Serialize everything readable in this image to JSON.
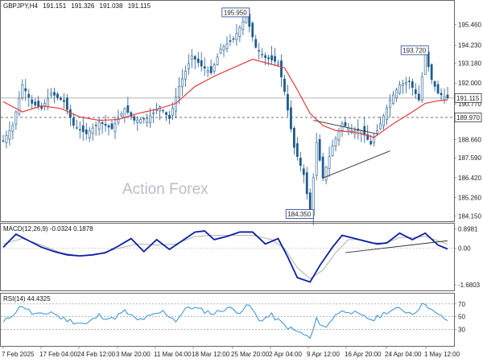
{
  "chart_data": [
    {
      "type": "candlestick",
      "symbol": "GBPJPY,H4",
      "ohlc": {
        "open": "191.151",
        "high": "191.326",
        "low": "191.038",
        "close": "191.115"
      },
      "ylim": [
        183.9,
        196.8
      ],
      "y_ticks": [
        "195.460",
        "194.230",
        "193.180",
        "192.000",
        "190.770",
        "188.660",
        "187.590",
        "186.420",
        "185.260",
        "184.150"
      ],
      "x_tick_labels": [
        "7 Feb 2025",
        "17 Feb 04:00",
        "24 Feb 12:00",
        "3 Mar 20:00",
        "11 Mar 04:00",
        "18 Mar 12:00",
        "25 Mar 20:00",
        "2 Apr 04:00",
        "9 Apr 12:00",
        "16 Apr 20:00",
        "24 Apr 04:00",
        "1 May 12:00"
      ],
      "x_count": 140,
      "price_path": [
        [
          0,
          188.6
        ],
        [
          3,
          189.5
        ],
        [
          6,
          191.9
        ],
        [
          9,
          190.8
        ],
        [
          12,
          190.5
        ],
        [
          15,
          191.4
        ],
        [
          19,
          190.9
        ],
        [
          22,
          189.5
        ],
        [
          26,
          189.0
        ],
        [
          30,
          189.7
        ],
        [
          34,
          189.3
        ],
        [
          38,
          190.5
        ],
        [
          41,
          189.8
        ],
        [
          45,
          189.9
        ],
        [
          49,
          190.6
        ],
        [
          52,
          189.9
        ],
        [
          55,
          191.8
        ],
        [
          59,
          193.6
        ],
        [
          62,
          193.0
        ],
        [
          65,
          192.6
        ],
        [
          68,
          194.0
        ],
        [
          72,
          194.6
        ],
        [
          76,
          195.95
        ],
        [
          79,
          194.1
        ],
        [
          82,
          193.5
        ],
        [
          86,
          193.2
        ],
        [
          88,
          191.5
        ],
        [
          91,
          188.2
        ],
        [
          94,
          186.6
        ],
        [
          96,
          184.35
        ],
        [
          98,
          188.5
        ],
        [
          100,
          186.4
        ],
        [
          103,
          188.3
        ],
        [
          106,
          189.6
        ],
        [
          109,
          189.2
        ],
        [
          112,
          189.2
        ],
        [
          115,
          188.4
        ],
        [
          118,
          189.6
        ],
        [
          121,
          191.0
        ],
        [
          124,
          191.9
        ],
        [
          127,
          192.1
        ],
        [
          130,
          191.0
        ],
        [
          132,
          193.72
        ],
        [
          134,
          192.2
        ],
        [
          136,
          191.4
        ],
        [
          138,
          191.2
        ],
        [
          139,
          191.115
        ]
      ],
      "moving_average": [
        [
          0,
          190.9
        ],
        [
          6,
          190.3
        ],
        [
          12,
          190.65
        ],
        [
          18,
          190.5
        ],
        [
          24,
          190.0
        ],
        [
          30,
          189.8
        ],
        [
          36,
          189.85
        ],
        [
          42,
          190.2
        ],
        [
          48,
          190.45
        ],
        [
          54,
          190.8
        ],
        [
          60,
          191.8
        ],
        [
          66,
          192.4
        ],
        [
          72,
          192.9
        ],
        [
          78,
          193.4
        ],
        [
          84,
          193.1
        ],
        [
          88,
          192.9
        ],
        [
          92,
          191.6
        ],
        [
          96,
          190.2
        ],
        [
          100,
          189.5
        ],
        [
          104,
          189.2
        ],
        [
          110,
          189.1
        ],
        [
          116,
          188.8
        ],
        [
          122,
          189.6
        ],
        [
          128,
          190.3
        ],
        [
          132,
          190.8
        ],
        [
          136,
          190.95
        ],
        [
          139,
          191.0
        ]
      ],
      "annotations": [
        {
          "text": "195.950",
          "x": 76,
          "y": 195.95
        },
        {
          "text": "193.720",
          "x": 132,
          "y": 193.72
        },
        {
          "text": "184.350",
          "x": 96,
          "y": 184.35
        }
      ],
      "price_labels": {
        "current": "191.115",
        "level": "189.970"
      },
      "level_line": 189.97,
      "current_line": 191.115,
      "trendlines": [
        {
          "from": [
            97,
            189.8
          ],
          "to": [
            117,
            189.0
          ]
        },
        {
          "from": [
            100,
            186.4
          ],
          "to": [
            121,
            188.0
          ]
        }
      ],
      "watermark": "Action Forex",
      "colors": {
        "candle": "#1f5a8f",
        "ma": "#e33b3b",
        "trendline": "#333333",
        "label_box": "#1f3f95"
      }
    },
    {
      "type": "line",
      "indicator": "MACD(12,26,9)",
      "header": "MACD(12,26,9) -0.0324 0.1878",
      "ylim": [
        -1.9,
        1.1
      ],
      "y_ticks": [
        {
          "label": "0.8981",
          "value": 0.8981
        },
        {
          "label": "0.00",
          "value": 0
        },
        {
          "label": "-1.6803",
          "value": -1.6803
        }
      ],
      "series": [
        {
          "values": [
            [
              0,
              0.05
            ],
            [
              4,
              0.65
            ],
            [
              8,
              0.35
            ],
            [
              12,
              0.05
            ],
            [
              16,
              -0.15
            ],
            [
              20,
              -0.3
            ],
            [
              24,
              -0.35
            ],
            [
              28,
              -0.3
            ],
            [
              32,
              -0.2
            ],
            [
              36,
              0.1
            ],
            [
              40,
              0.45
            ],
            [
              44,
              -0.15
            ],
            [
              48,
              0.4
            ],
            [
              52,
              -0.05
            ],
            [
              56,
              0.35
            ],
            [
              60,
              0.75
            ],
            [
              63,
              0.8
            ],
            [
              66,
              0.4
            ],
            [
              70,
              0.55
            ],
            [
              74,
              0.75
            ],
            [
              78,
              0.75
            ],
            [
              82,
              0.2
            ],
            [
              86,
              0.45
            ],
            [
              89,
              -0.4
            ],
            [
              92,
              -1.35
            ],
            [
              96,
              -1.55
            ],
            [
              99,
              -0.8
            ],
            [
              103,
              0.05
            ],
            [
              106,
              0.6
            ],
            [
              110,
              0.45
            ],
            [
              114,
              0.3
            ],
            [
              117,
              0.2
            ],
            [
              120,
              0.25
            ],
            [
              124,
              0.7
            ],
            [
              128,
              0.4
            ],
            [
              132,
              0.7
            ],
            [
              136,
              0.15
            ],
            [
              139,
              -0.03
            ]
          ]
        },
        {
          "values": [
            [
              0,
              0.2
            ],
            [
              6,
              0.45
            ],
            [
              12,
              0.15
            ],
            [
              18,
              -0.2
            ],
            [
              24,
              -0.35
            ],
            [
              30,
              -0.25
            ],
            [
              36,
              0.0
            ],
            [
              42,
              0.2
            ],
            [
              48,
              0.15
            ],
            [
              54,
              0.2
            ],
            [
              60,
              0.55
            ],
            [
              66,
              0.6
            ],
            [
              72,
              0.6
            ],
            [
              78,
              0.6
            ],
            [
              84,
              0.4
            ],
            [
              88,
              0.0
            ],
            [
              92,
              -0.9
            ],
            [
              96,
              -1.4
            ],
            [
              100,
              -1.0
            ],
            [
              104,
              -0.2
            ],
            [
              108,
              0.4
            ],
            [
              112,
              0.4
            ],
            [
              116,
              0.25
            ],
            [
              120,
              0.25
            ],
            [
              124,
              0.5
            ],
            [
              128,
              0.5
            ],
            [
              132,
              0.55
            ],
            [
              136,
              0.35
            ],
            [
              139,
              0.19
            ]
          ]
        }
      ],
      "trendline": {
        "from": [
          107,
          -0.2
        ],
        "to": [
          139,
          0.35
        ]
      },
      "colors": {
        "macd": "#0b1fa3",
        "signal": "#b0b0b0",
        "trendline": "#333333"
      }
    },
    {
      "type": "line",
      "indicator": "RSI(14)",
      "header": "RSI(14) 44.4325",
      "ylim": [
        0,
        100
      ],
      "y_ticks": [
        {
          "label": "70",
          "value": 70
        },
        {
          "label": "50",
          "value": 50
        },
        {
          "label": "30",
          "value": 30
        }
      ],
      "series": [
        {
          "values": [
            [
              0,
              40
            ],
            [
              3,
              54
            ],
            [
              6,
              68
            ],
            [
              9,
              55
            ],
            [
              12,
              52
            ],
            [
              15,
              58
            ],
            [
              18,
              48
            ],
            [
              22,
              42
            ],
            [
              26,
              38
            ],
            [
              30,
              52
            ],
            [
              34,
              46
            ],
            [
              38,
              58
            ],
            [
              42,
              44
            ],
            [
              46,
              50
            ],
            [
              50,
              58
            ],
            [
              54,
              44
            ],
            [
              58,
              66
            ],
            [
              62,
              60
            ],
            [
              66,
              55
            ],
            [
              70,
              64
            ],
            [
              74,
              58
            ],
            [
              77,
              68
            ],
            [
              80,
              44
            ],
            [
              84,
              52
            ],
            [
              88,
              36
            ],
            [
              91,
              28
            ],
            [
              94,
              22
            ],
            [
              96,
              15
            ],
            [
              98,
              45
            ],
            [
              101,
              32
            ],
            [
              104,
              55
            ],
            [
              108,
              60
            ],
            [
              112,
              50
            ],
            [
              116,
              45
            ],
            [
              120,
              58
            ],
            [
              124,
              62
            ],
            [
              128,
              55
            ],
            [
              132,
              72
            ],
            [
              135,
              55
            ],
            [
              139,
              44.43
            ]
          ]
        }
      ],
      "colors": {
        "rsi": "#2e8fd9",
        "levels": "#888888"
      }
    }
  ]
}
